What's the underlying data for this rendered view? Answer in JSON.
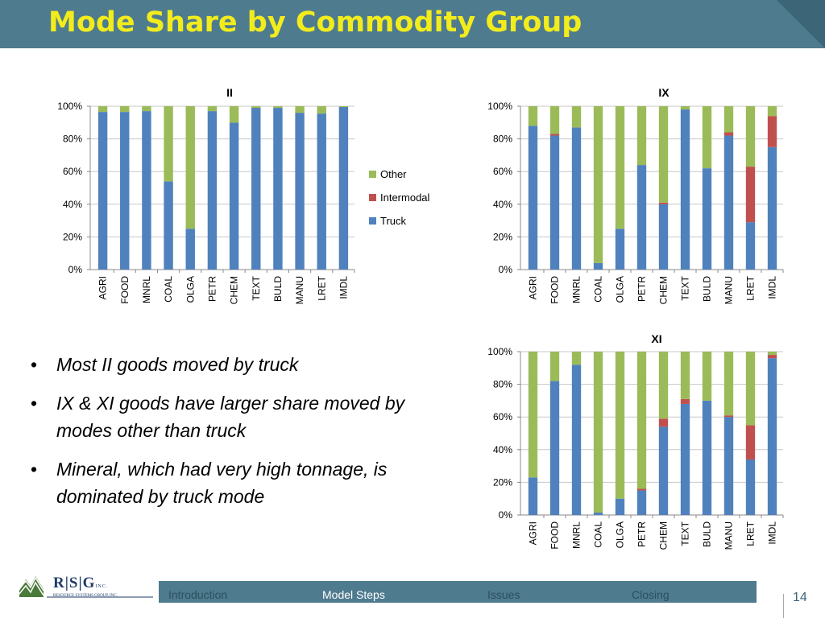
{
  "title": "Mode Share by Commodity Group",
  "chart_data": [
    {
      "type": "bar",
      "stacked": true,
      "title": "II",
      "categories": [
        "AGRI",
        "FOOD",
        "MNRL",
        "COAL",
        "OLGA",
        "PETR",
        "CHEM",
        "TEXT",
        "BULD",
        "MANU",
        "LRET",
        "IMDL"
      ],
      "series": [
        {
          "name": "Truck",
          "color": "#4f81bd",
          "values": [
            96.5,
            96.5,
            97,
            54,
            25,
            97,
            90,
            99,
            99,
            96,
            95.5,
            99.5
          ]
        },
        {
          "name": "Intermodal",
          "color": "#c0504d",
          "values": [
            0,
            0,
            0,
            0,
            0,
            0,
            0,
            0,
            0,
            0,
            0,
            0
          ]
        },
        {
          "name": "Other",
          "color": "#9bbb59",
          "values": [
            3.5,
            3.5,
            3,
            46,
            75,
            3,
            10,
            1,
            1,
            4,
            4.5,
            0.5
          ]
        }
      ],
      "yticks": [
        "0%",
        "20%",
        "40%",
        "60%",
        "80%",
        "100%"
      ],
      "ylim": [
        0,
        100
      ],
      "legend": "right"
    },
    {
      "type": "bar",
      "stacked": true,
      "title": "IX",
      "categories": [
        "AGRI",
        "FOOD",
        "MNRL",
        "COAL",
        "OLGA",
        "PETR",
        "CHEM",
        "TEXT",
        "BULD",
        "MANU",
        "LRET",
        "IMDL"
      ],
      "series": [
        {
          "name": "Truck",
          "color": "#4f81bd",
          "values": [
            88,
            82,
            87,
            4,
            25,
            64,
            40,
            98,
            62,
            82,
            29,
            75
          ]
        },
        {
          "name": "Intermodal",
          "color": "#c0504d",
          "values": [
            0,
            1,
            0,
            0,
            0,
            0,
            1,
            0,
            0,
            2,
            34,
            19
          ]
        },
        {
          "name": "Other",
          "color": "#9bbb59",
          "values": [
            12,
            17,
            13,
            96,
            75,
            36,
            59,
            2,
            38,
            16,
            37,
            6
          ]
        }
      ],
      "yticks": [
        "0%",
        "20%",
        "40%",
        "60%",
        "80%",
        "100%"
      ],
      "ylim": [
        0,
        100
      ]
    },
    {
      "type": "bar",
      "stacked": true,
      "title": "XI",
      "categories": [
        "AGRI",
        "FOOD",
        "MNRL",
        "COAL",
        "OLGA",
        "PETR",
        "CHEM",
        "TEXT",
        "BULD",
        "MANU",
        "LRET",
        "IMDL"
      ],
      "series": [
        {
          "name": "Truck",
          "color": "#4f81bd",
          "values": [
            23,
            82,
            92,
            1.5,
            10,
            15,
            54,
            68,
            70,
            60,
            34,
            96
          ]
        },
        {
          "name": "Intermodal",
          "color": "#c0504d",
          "values": [
            0,
            0,
            0,
            0,
            0,
            1,
            5,
            3,
            0,
            1,
            21,
            2
          ]
        },
        {
          "name": "Other",
          "color": "#9bbb59",
          "values": [
            77,
            18,
            8,
            98.5,
            90,
            84,
            41,
            29,
            30,
            39,
            45,
            2
          ]
        }
      ],
      "yticks": [
        "0%",
        "20%",
        "40%",
        "60%",
        "80%",
        "100%"
      ],
      "ylim": [
        0,
        100
      ]
    }
  ],
  "bullets": [
    "Most II goods moved by truck",
    "IX & XI goods have larger share moved by modes other than truck",
    "Mineral, which had very high tonnage, is dominated by truck mode"
  ],
  "bullet_glyph": "•",
  "logo": {
    "text": "R|S|G",
    "suffix": "INC.",
    "subtext": "RESOURCE SYSTEMS GROUP, INC."
  },
  "nav": {
    "items": [
      "Introduction",
      "Model Steps",
      "Issues",
      "Closing"
    ],
    "active": "Model Steps"
  },
  "page_number": "14"
}
